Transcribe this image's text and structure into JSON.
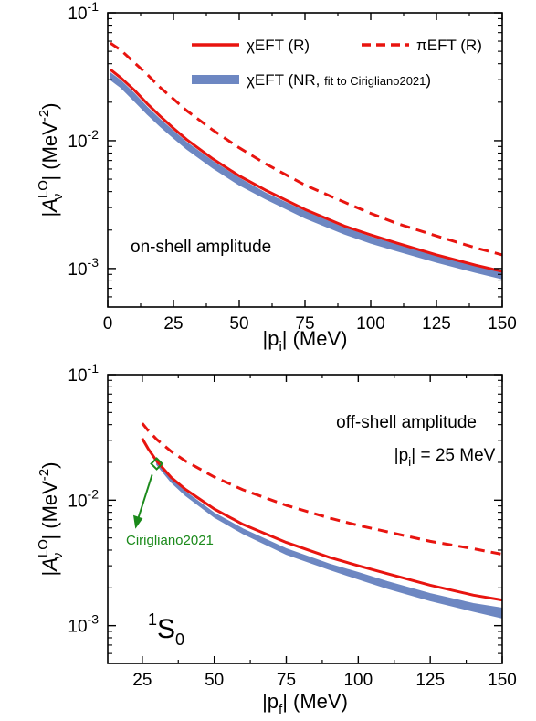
{
  "colors": {
    "r": "#e8140f",
    "band": "#6d87c2",
    "green": "#1b8a1b"
  },
  "legend": {
    "chi_r": "χEFT (R)",
    "pi_r": "πEFT (R)",
    "nr_main": "χEFT (NR, ",
    "nr_small": "fit to Cirigliano2021",
    "nr_close": ")"
  },
  "chart_data": [
    {
      "type": "line",
      "annotation": "on-shell amplitude",
      "xlabel": "|p_i| (MeV)",
      "ylabel": "|A_ν^LO| (MeV^-2)",
      "yscale": "log",
      "xlim": [
        0,
        150
      ],
      "ylim": [
        0.0005,
        0.1
      ],
      "xticks": [
        "0",
        "25",
        "50",
        "75",
        "100",
        "125",
        "150"
      ],
      "yticks": [
        "10^-3",
        "10^-2",
        "10^-1"
      ],
      "legend_position": "top-right",
      "series": [
        {
          "name": "χEFT (R)",
          "style": "solid",
          "x": [
            1,
            5,
            10,
            15,
            20,
            25,
            30,
            40,
            50,
            60,
            75,
            90,
            100,
            110,
            125,
            140,
            150
          ],
          "values": [
            0.036,
            0.031,
            0.025,
            0.0195,
            0.0155,
            0.0125,
            0.0102,
            0.0072,
            0.0053,
            0.0041,
            0.0029,
            0.00215,
            0.00183,
            0.00158,
            0.00128,
            0.00106,
            0.00095
          ]
        },
        {
          "name": "πEFT (R)",
          "style": "dashed",
          "x": [
            1,
            5,
            10,
            15,
            20,
            25,
            30,
            40,
            50,
            60,
            75,
            90,
            100,
            110,
            125,
            140,
            150
          ],
          "values": [
            0.058,
            0.051,
            0.041,
            0.033,
            0.026,
            0.0212,
            0.0172,
            0.0121,
            0.0088,
            0.0066,
            0.0045,
            0.0033,
            0.0027,
            0.00225,
            0.0018,
            0.00145,
            0.00128
          ]
        },
        {
          "name": "χEFT (NR, fit to Cirigliano2021)",
          "style": "band",
          "x": [
            1,
            5,
            10,
            15,
            20,
            25,
            30,
            40,
            50,
            60,
            75,
            90,
            100,
            110,
            125,
            140,
            150
          ],
          "lower": [
            0.03,
            0.026,
            0.0205,
            0.0161,
            0.0129,
            0.0105,
            0.0086,
            0.0061,
            0.0045,
            0.0035,
            0.00248,
            0.00186,
            0.00158,
            0.00137,
            0.00112,
            0.00093,
            0.00083
          ],
          "upper": [
            0.034,
            0.0295,
            0.0235,
            0.0183,
            0.0146,
            0.0119,
            0.0097,
            0.0069,
            0.0051,
            0.0039,
            0.0028,
            0.00208,
            0.00177,
            0.00153,
            0.00125,
            0.00104,
            0.00093
          ]
        }
      ]
    },
    {
      "type": "line",
      "annotation": "off-shell amplitude",
      "condition": "|p_i| = 25 MeV",
      "wave": "1S0",
      "xlabel": "|p_f| (MeV)",
      "ylabel": "|A_ν^LO| (MeV^-2)",
      "yscale": "log",
      "xlim": [
        13,
        150
      ],
      "ylim": [
        0.0005,
        0.1
      ],
      "xticks": [
        "25",
        "50",
        "75",
        "100",
        "125",
        "150"
      ],
      "yticks": [
        "10^-3",
        "10^-2",
        "10^-1"
      ],
      "series": [
        {
          "name": "χEFT (R)",
          "style": "solid",
          "x": [
            25,
            27,
            30,
            35,
            40,
            50,
            60,
            75,
            90,
            100,
            110,
            125,
            140,
            150
          ],
          "values": [
            0.031,
            0.0258,
            0.0205,
            0.0152,
            0.0122,
            0.0085,
            0.0064,
            0.0046,
            0.0035,
            0.003,
            0.0026,
            0.0021,
            0.00175,
            0.0016
          ]
        },
        {
          "name": "πEFT (R)",
          "style": "dashed",
          "x": [
            25,
            27,
            30,
            35,
            40,
            50,
            60,
            75,
            90,
            100,
            110,
            125,
            140,
            150
          ],
          "values": [
            0.041,
            0.036,
            0.0305,
            0.0245,
            0.0205,
            0.0153,
            0.0121,
            0.0091,
            0.0072,
            0.0063,
            0.0056,
            0.0047,
            0.0041,
            0.0037
          ]
        },
        {
          "name": "χEFT (NR, fit to Cirigliano2021)",
          "style": "band",
          "x": [
            30,
            35,
            40,
            50,
            60,
            75,
            90,
            100,
            110,
            125,
            140,
            150
          ],
          "lower": [
            0.0192,
            0.0139,
            0.0109,
            0.0073,
            0.0054,
            0.0037,
            0.0028,
            0.00235,
            0.00198,
            0.00158,
            0.0013,
            0.00115
          ],
          "upper": [
            0.0205,
            0.0148,
            0.0117,
            0.0079,
            0.0059,
            0.0041,
            0.0031,
            0.00265,
            0.00225,
            0.0018,
            0.0015,
            0.00138
          ]
        }
      ],
      "reference_point": {
        "label": "Cirigliano2021",
        "x": 30,
        "y": 0.0195
      }
    }
  ]
}
